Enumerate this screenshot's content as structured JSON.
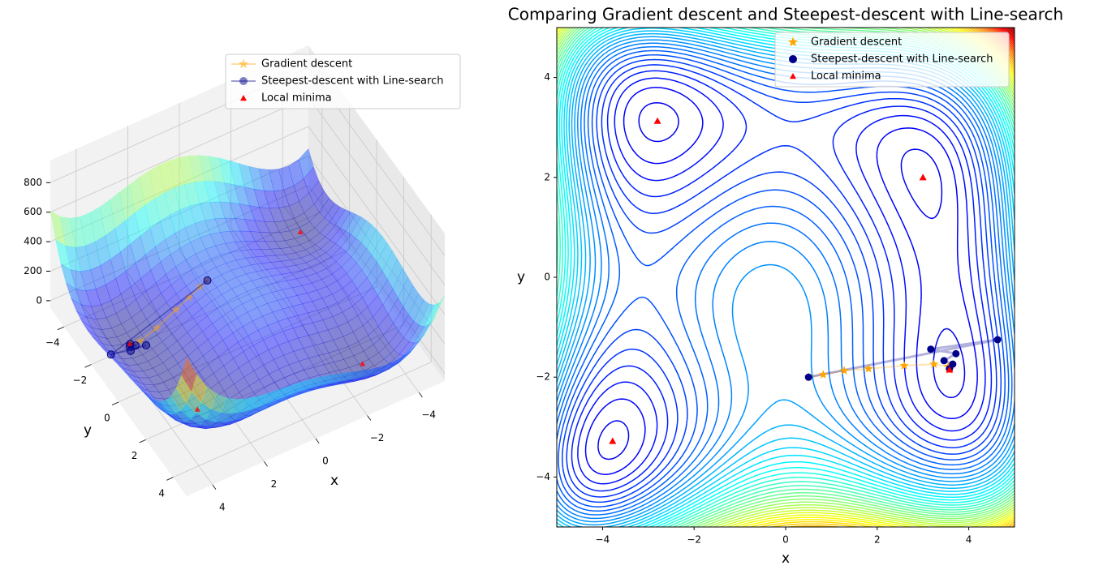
{
  "chart_data": [
    {
      "type": "surface3d",
      "xlabel": "x",
      "ylabel": "y",
      "xlim": [
        -5,
        5
      ],
      "ylim": [
        -5,
        5
      ],
      "zlim": [
        -50,
        950
      ],
      "xticks": [
        {
          "value": -4,
          "label": "−4"
        },
        {
          "value": -2,
          "label": "−2"
        },
        0,
        2,
        4
      ],
      "yticks": [
        {
          "value": -4,
          "label": "−4"
        },
        {
          "value": -2,
          "label": "−2"
        },
        0,
        2,
        4
      ],
      "zticks": [
        0,
        200,
        400,
        600,
        800
      ],
      "legend": "upper right",
      "series": [
        {
          "name": "Gradient descent",
          "color": "orange",
          "marker": "star",
          "x": [
            0.5,
            0.82,
            1.28,
            1.81,
            2.59,
            3.24,
            3.55,
            3.58
          ],
          "y": [
            -2,
            -1.95,
            -1.87,
            -1.83,
            -1.77,
            -1.74,
            -1.79,
            -1.85
          ],
          "z": [
            168.8,
            156.5,
            131,
            94.6,
            38.4,
            5.5,
            0.1,
            0
          ]
        },
        {
          "name": "Steepest-descent with Line-search",
          "color": "#00008b",
          "marker": "circle",
          "x": [
            0.5,
            4.63,
            3.17,
            3.72,
            3.46,
            3.65,
            3.58
          ],
          "y": [
            -2,
            -1.25,
            -1.44,
            -1.53,
            -1.67,
            -1.74,
            -1.83
          ],
          "z": [
            168.8,
            84.4,
            8.8,
            2.6,
            1.05,
            0.44,
            0.01
          ]
        },
        {
          "name": "Local minima",
          "color": "red",
          "marker": "triangle",
          "x": [
            -2.8,
            3,
            -3.78,
            3.58
          ],
          "y": [
            3.13,
            2,
            -3.28,
            -1.85
          ],
          "z": [
            0,
            0,
            0,
            0
          ]
        }
      ]
    },
    {
      "type": "contour",
      "title": "Comparing Gradient descent and Steepest-descent with Line-search",
      "xlabel": "x",
      "ylabel": "y",
      "xlim": [
        -5,
        5
      ],
      "ylim": [
        -5,
        5
      ],
      "xticks": [
        {
          "value": -4,
          "label": "−4"
        },
        {
          "value": -2,
          "label": "−2"
        },
        0,
        2,
        4
      ],
      "yticks": [
        {
          "value": -4,
          "label": "−4"
        },
        {
          "value": -2,
          "label": "−2"
        },
        0,
        2,
        4
      ],
      "legend": "upper right",
      "series": [
        {
          "name": "Gradient descent",
          "color": "orange",
          "marker": "star",
          "x": [
            0.5,
            0.82,
            1.28,
            1.81,
            2.59,
            3.24,
            3.55,
            3.58
          ],
          "y": [
            -2,
            -1.95,
            -1.87,
            -1.83,
            -1.77,
            -1.74,
            -1.79,
            -1.85
          ]
        },
        {
          "name": "Steepest-descent with Line-search",
          "color": "#00008b",
          "marker": "circle",
          "x": [
            0.5,
            4.63,
            3.17,
            3.72,
            3.46,
            3.65,
            3.58
          ],
          "y": [
            -2,
            -1.25,
            -1.44,
            -1.53,
            -1.67,
            -1.74,
            -1.83
          ]
        },
        {
          "name": "Local minima",
          "color": "red",
          "marker": "triangle",
          "x": [
            -2.8,
            3,
            -3.78,
            3.58
          ],
          "y": [
            3.13,
            2,
            -3.28,
            -1.85
          ]
        }
      ]
    }
  ]
}
